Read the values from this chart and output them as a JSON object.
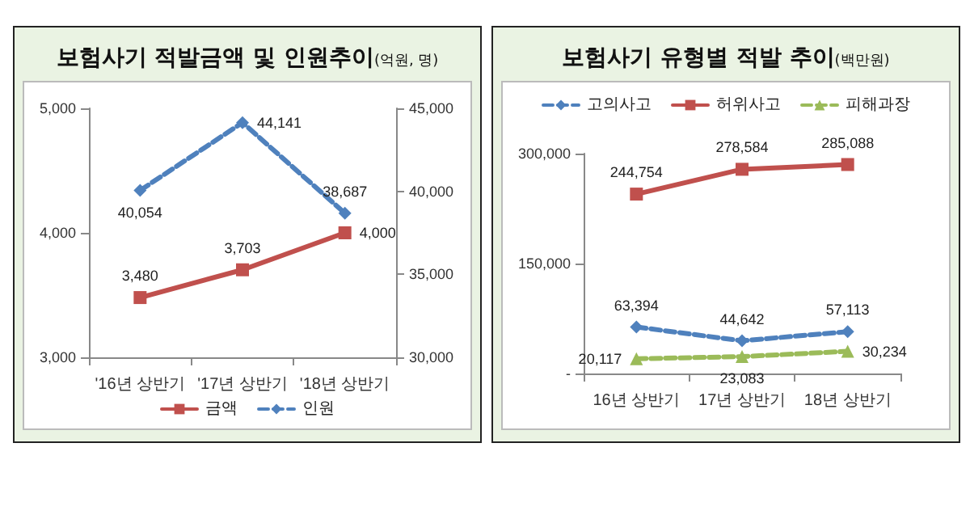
{
  "chart_data": [
    {
      "type": "line",
      "title": "보험사기 적발금액 및 인원추이",
      "subtitle": "(억원, 명)",
      "categories": [
        "'16년 상반기",
        "'17년 상반기",
        "'18년 상반기"
      ],
      "series": [
        {
          "name": "금액",
          "color": "#c0504d",
          "values": [
            3480,
            3703,
            4000
          ],
          "value_labels": [
            "3,480",
            "3,703",
            "4,000"
          ],
          "marker": "square",
          "line_style": "solid"
        },
        {
          "name": "인원",
          "color": "#4f81bd",
          "values": [
            40054,
            44141,
            38687
          ],
          "value_labels": [
            "40,054",
            "44,141",
            "38,687"
          ],
          "marker": "diamond",
          "line_style": "dashed",
          "axis": "y2"
        }
      ],
      "ylim": [
        3000,
        5000
      ],
      "yticks": [
        {
          "value": 3000,
          "label": "3,000"
        },
        {
          "value": 4000,
          "label": "4,000"
        },
        {
          "value": 5000,
          "label": "5,000"
        }
      ],
      "y2lim": [
        30000,
        45000
      ],
      "y2ticks": [
        {
          "value": 30000,
          "label": "30,000"
        },
        {
          "value": 35000,
          "label": "35,000"
        },
        {
          "value": 40000,
          "label": "40,000"
        },
        {
          "value": 45000,
          "label": "45,000"
        }
      ],
      "legend": "bottom",
      "grid": false
    },
    {
      "type": "line",
      "title": "보험사기 유형별 적발 추이",
      "subtitle": "(백만원)",
      "categories": [
        "16년 상반기",
        "17년 상반기",
        "18년 상반기"
      ],
      "series": [
        {
          "name": "고의사고",
          "color": "#4f81bd",
          "values": [
            63394,
            44642,
            57113
          ],
          "value_labels": [
            "63,394",
            "44,642",
            "57,113"
          ],
          "marker": "diamond",
          "line_style": "dashed"
        },
        {
          "name": "허위사고",
          "color": "#c0504d",
          "values": [
            244754,
            278584,
            285088
          ],
          "value_labels": [
            "244,754",
            "278,584",
            "285,088"
          ],
          "marker": "square",
          "line_style": "solid"
        },
        {
          "name": "피해과장",
          "color": "#9bbb59",
          "values": [
            20117,
            23083,
            30234
          ],
          "value_labels": [
            "20,117",
            "23,083",
            "30,234"
          ],
          "marker": "triangle",
          "line_style": "dashed"
        }
      ],
      "ylim": [
        0,
        300000
      ],
      "yticks": [
        {
          "value": 0,
          "label": "-"
        },
        {
          "value": 150000,
          "label": "150,000"
        },
        {
          "value": 300000,
          "label": "300,000"
        }
      ],
      "legend": "top",
      "grid": false
    }
  ]
}
